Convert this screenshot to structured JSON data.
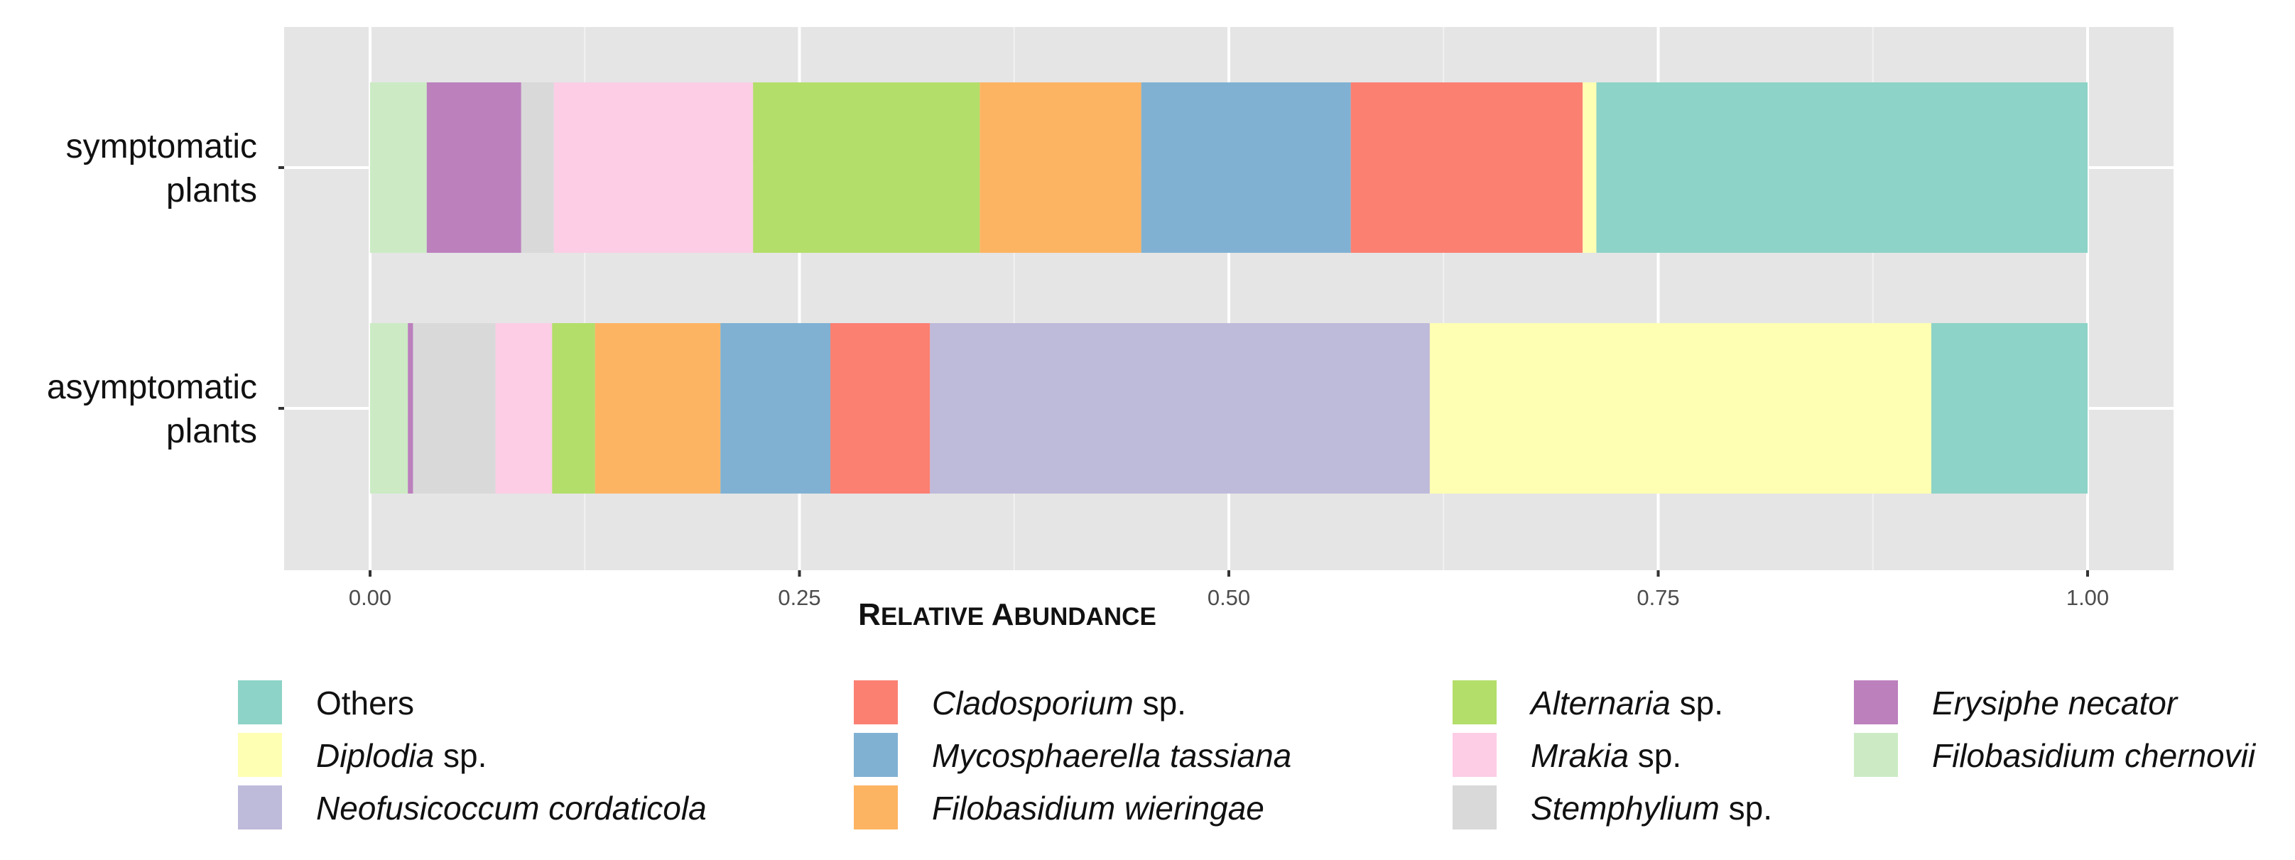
{
  "chart_data": {
    "type": "bar",
    "orientation": "horizontal",
    "stacked": true,
    "title": "",
    "xlabel": "Relative Abundance",
    "ylabel": "",
    "xlim": [
      0,
      1
    ],
    "x_ticks": [
      "0.00",
      "0.25",
      "0.50",
      "0.75",
      "1.00"
    ],
    "grid": true,
    "legend_position": "bottom",
    "categories": [
      {
        "label_lines": [
          "symptomatic",
          "plants"
        ]
      },
      {
        "label_lines": [
          "asymptomatic",
          "plants"
        ]
      }
    ],
    "series": [
      {
        "name": "Filobasidium chernovii",
        "genus": "Filobasidium chernovii",
        "suffix": "",
        "color": "#ccebc5",
        "values": [
          0.033,
          0.022
        ]
      },
      {
        "name": "Erysiphe necator",
        "genus": "Erysiphe necator",
        "suffix": "",
        "color": "#bc80bd",
        "values": [
          0.055,
          0.003
        ]
      },
      {
        "name": "Stemphylium sp.",
        "genus": "Stemphylium",
        "suffix": " sp.",
        "color": "#d9d9d9",
        "values": [
          0.019,
          0.048
        ]
      },
      {
        "name": "Mrakia sp.",
        "genus": "Mrakia",
        "suffix": " sp.",
        "color": "#fccde5",
        "values": [
          0.116,
          0.033
        ]
      },
      {
        "name": "Alternaria sp.",
        "genus": "Alternaria",
        "suffix": " sp.",
        "color": "#b3de69",
        "values": [
          0.132,
          0.025
        ]
      },
      {
        "name": "Filobasidium wieringae",
        "genus": "Filobasidium wieringae",
        "suffix": "",
        "color": "#fdb462",
        "values": [
          0.094,
          0.073
        ]
      },
      {
        "name": "Mycosphaerella tassiana",
        "genus": "Mycosphaerella tassiana",
        "suffix": "",
        "color": "#80b1d3",
        "values": [
          0.122,
          0.064
        ]
      },
      {
        "name": "Cladosporium sp.",
        "genus": "Cladosporium",
        "suffix": " sp.",
        "color": "#fb8072",
        "values": [
          0.135,
          0.058
        ]
      },
      {
        "name": "Neofusicoccum cordaticola",
        "genus": "Neofusicoccum cordaticola",
        "suffix": "",
        "color": "#bebada",
        "values": [
          0.0,
          0.291
        ]
      },
      {
        "name": "Diplodia sp.",
        "genus": "Diplodia",
        "suffix": " sp.",
        "color": "#ffffb3",
        "values": [
          0.008,
          0.292
        ]
      },
      {
        "name": "Others",
        "genus": "Others",
        "suffix": "",
        "color": "#8dd3c7",
        "values": [
          0.286,
          0.091
        ]
      }
    ],
    "legend_order": [
      "Others",
      "Diplodia sp.",
      "Neofusicoccum cordaticola",
      "Cladosporium sp.",
      "Mycosphaerella tassiana",
      "Filobasidium wieringae",
      "Alternaria sp.",
      "Mrakia sp.",
      "Stemphylium sp.",
      "Erysiphe necator",
      "Filobasidium chernovii"
    ],
    "legend_italic": {
      "Others": false
    },
    "colors": {
      "panel_background": "#e5e5e5",
      "gridline": "#f0f0f0"
    }
  }
}
